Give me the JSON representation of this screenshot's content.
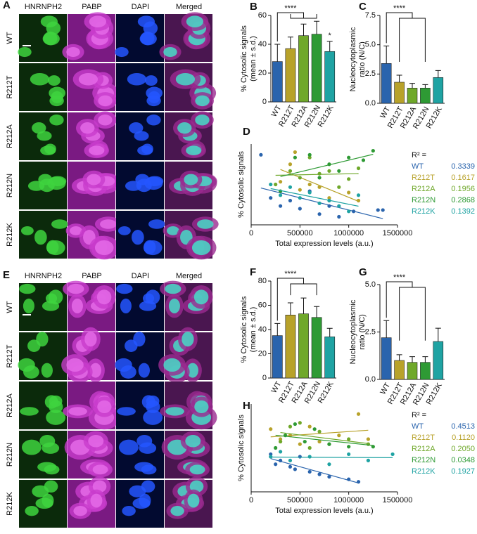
{
  "image_grids": [
    {
      "panel": "A",
      "columns": [
        "HNRNPH2",
        "PABP",
        "DAPI",
        "Merged"
      ],
      "rows": [
        "WT",
        "R212T",
        "R212A",
        "R212N",
        "R212K"
      ]
    },
    {
      "panel": "E",
      "columns": [
        "HNRNPH2",
        "PABP",
        "DAPI",
        "Merged"
      ],
      "rows": [
        "WT",
        "R212T",
        "R212A",
        "R212N",
        "R212K"
      ]
    }
  ],
  "chart_data": [
    {
      "type": "bar",
      "panel": "B",
      "ylabel": [
        "% Cytosolic signals",
        "(mean ± s.d.)"
      ],
      "categories": [
        "WT",
        "R212T",
        "R212A",
        "R212N",
        "R212K"
      ],
      "values": [
        28,
        37,
        46,
        47,
        35
      ],
      "errors": [
        12,
        8,
        8,
        9,
        7
      ],
      "colors": [
        "#2a64ad",
        "#b8a22a",
        "#6fa82a",
        "#2e9a34",
        "#1fa3a3"
      ],
      "ylim": [
        0,
        60
      ],
      "yticks": [
        0,
        20,
        40,
        60
      ],
      "annotations": [
        "****",
        "*"
      ]
    },
    {
      "type": "bar",
      "panel": "C",
      "ylabel": [
        "Nucleocytoplasmic",
        "ratio (N/C)"
      ],
      "categories": [
        "WT",
        "R212T",
        "R212A",
        "R212N",
        "R212K"
      ],
      "values": [
        3.4,
        1.8,
        1.3,
        1.3,
        2.2
      ],
      "errors": [
        1.5,
        0.6,
        0.4,
        0.3,
        0.6
      ],
      "colors": [
        "#2a64ad",
        "#b8a22a",
        "#6fa82a",
        "#2e9a34",
        "#1fa3a3"
      ],
      "ylim": [
        0,
        7.5
      ],
      "yticks": [
        {
          "value": 0,
          "label": "0.0"
        },
        2.5,
        {
          "value": 5,
          "label": "5.0"
        },
        7.5
      ],
      "annotations": [
        "****"
      ]
    },
    {
      "type": "scatter",
      "panel": "D",
      "ylabel": "% Cytosolic signals",
      "xlabel": "Total expression levels (a.u.)",
      "legend_title": "R² =",
      "xlim": [
        0,
        1500000
      ],
      "xticks": [
        0,
        500000,
        1000000,
        1500000
      ],
      "ylim": [
        10,
        70
      ],
      "series": [
        {
          "name": "WT",
          "color": "#2a64ad",
          "r2": "0.3339",
          "x": [
            100000,
            200000,
            300000,
            400000,
            500000,
            600000,
            700000,
            800000,
            900000,
            1050000,
            1300000,
            1350000
          ],
          "values": [
            62,
            30,
            24,
            28,
            22,
            35,
            18,
            24,
            16,
            20,
            21,
            21
          ]
        },
        {
          "name": "R212T",
          "color": "#b8a22a",
          "r2": "0.1617",
          "x": [
            300000,
            400000,
            450000,
            500000,
            600000,
            700000,
            800000,
            1000000,
            1100000
          ],
          "values": [
            42,
            55,
            64,
            36,
            40,
            38,
            30,
            34,
            28
          ]
        },
        {
          "name": "R212A",
          "color": "#6fa82a",
          "r2": "0.1956",
          "x": [
            250000,
            400000,
            500000,
            600000,
            700000,
            800000,
            900000,
            1000000,
            1100000
          ],
          "values": [
            40,
            50,
            45,
            60,
            48,
            50,
            38,
            44,
            52
          ]
        },
        {
          "name": "R212N",
          "color": "#2e9a34",
          "r2": "0.2868",
          "x": [
            300000,
            450000,
            600000,
            700000,
            800000,
            900000,
            1000000,
            1150000,
            1250000
          ],
          "values": [
            35,
            60,
            62,
            45,
            55,
            50,
            60,
            58,
            65
          ]
        },
        {
          "name": "R212K",
          "color": "#1fa3a3",
          "r2": "0.1392",
          "x": [
            200000,
            300000,
            400000,
            500000,
            600000,
            700000,
            800000,
            900000,
            1000000,
            1100000
          ],
          "values": [
            40,
            32,
            38,
            30,
            34,
            26,
            28,
            24,
            20,
            32
          ]
        }
      ]
    },
    {
      "type": "bar",
      "panel": "F",
      "ylabel": [
        "% Cytosolic signals",
        "(mean ± s.d.)"
      ],
      "categories": [
        "WT",
        "R212T",
        "R212A",
        "R212N",
        "R212K"
      ],
      "values": [
        35,
        52,
        53,
        50,
        34
      ],
      "errors": [
        10,
        10,
        13,
        9,
        7
      ],
      "colors": [
        "#2a64ad",
        "#b8a22a",
        "#6fa82a",
        "#2e9a34",
        "#1fa3a3"
      ],
      "ylim": [
        0,
        80
      ],
      "yticks": [
        0,
        20,
        40,
        60,
        80
      ],
      "annotations": [
        "****"
      ]
    },
    {
      "type": "bar",
      "panel": "G",
      "ylabel": [
        "Nucleocytoplasmic",
        "ratio (N/C)"
      ],
      "categories": [
        "WT",
        "R212T",
        "R212A",
        "R212N",
        "R212K"
      ],
      "values": [
        2.2,
        1.0,
        0.9,
        0.9,
        2.0
      ],
      "errors": [
        0.9,
        0.3,
        0.3,
        0.3,
        0.7
      ],
      "colors": [
        "#2a64ad",
        "#b8a22a",
        "#6fa82a",
        "#2e9a34",
        "#1fa3a3"
      ],
      "ylim": [
        0,
        5
      ],
      "yticks": [
        {
          "value": 0,
          "label": "0.0"
        },
        2.5,
        {
          "value": 5,
          "label": "5.0"
        }
      ],
      "annotations": [
        "****"
      ]
    },
    {
      "type": "scatter",
      "panel": "H",
      "ylabel": "% Cytosolic signals",
      "xlabel": "Total expression levels (a.u.)",
      "legend_title": "R² =",
      "xlim": [
        0,
        1500000
      ],
      "xticks": [
        0,
        500000,
        1000000,
        1500000
      ],
      "ylim": [
        10,
        80
      ],
      "series": [
        {
          "name": "WT",
          "color": "#2a64ad",
          "r2": "0.4513",
          "x": [
            200000,
            250000,
            300000,
            400000,
            450000,
            500000,
            600000,
            700000,
            800000,
            1000000,
            1100000
          ],
          "values": [
            40,
            32,
            35,
            30,
            28,
            38,
            26,
            24,
            22,
            20,
            18
          ]
        },
        {
          "name": "R212T",
          "color": "#b8a22a",
          "r2": "0.1120",
          "x": [
            200000,
            300000,
            400000,
            500000,
            600000,
            700000,
            900000,
            1100000,
            1200000
          ],
          "values": [
            60,
            52,
            55,
            48,
            62,
            50,
            55,
            72,
            52
          ]
        },
        {
          "name": "R212A",
          "color": "#6fa82a",
          "r2": "0.2050",
          "x": [
            300000,
            400000,
            500000,
            600000,
            700000,
            800000,
            1000000,
            1200000
          ],
          "values": [
            50,
            62,
            65,
            45,
            58,
            48,
            52,
            48
          ]
        },
        {
          "name": "R212N",
          "color": "#2e9a34",
          "r2": "0.0348",
          "x": [
            250000,
            350000,
            450000,
            550000,
            650000,
            800000,
            1000000,
            1250000
          ],
          "values": [
            45,
            55,
            64,
            50,
            60,
            48,
            46,
            46
          ]
        },
        {
          "name": "R212K",
          "color": "#1fa3a3",
          "r2": "0.1927",
          "x": [
            200000,
            300000,
            400000,
            600000,
            800000,
            1000000,
            1200000,
            1450000
          ],
          "values": [
            38,
            42,
            35,
            38,
            32,
            40,
            35,
            40
          ]
        }
      ]
    }
  ]
}
